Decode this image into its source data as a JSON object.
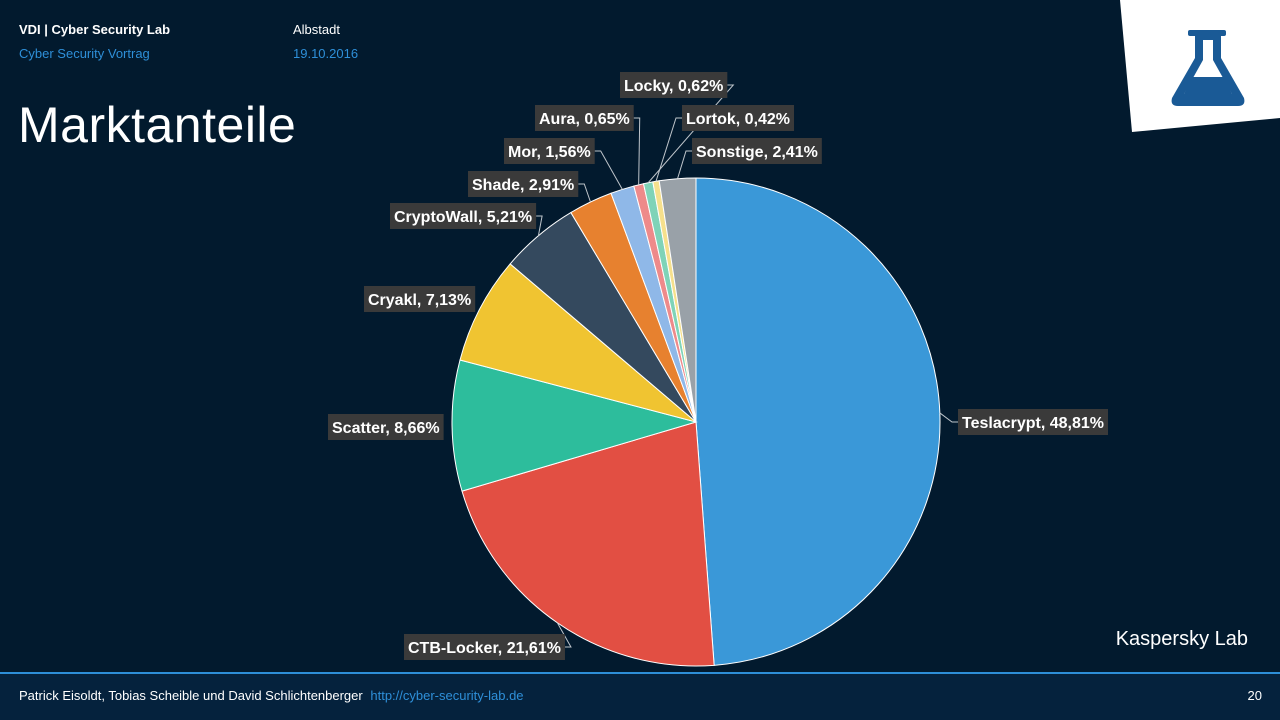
{
  "header": {
    "title": "VDI | Cyber Security Lab",
    "subtitle": "Cyber Security Vortrag",
    "location": "Albstadt",
    "date": "19.10.2016"
  },
  "slide": {
    "title": "Marktanteile",
    "source": "Kaspersky Lab",
    "page_number": "20"
  },
  "footer": {
    "authors": "Patrick Eisoldt, Tobias Scheible und David Schlichtenberger",
    "link": "http://cyber-security-lab.de"
  },
  "icons": {
    "logo": "flask-icon"
  },
  "colors": {
    "background": "#021a2e",
    "accent": "#2e8fd8",
    "label_bg": "#3a3a3a"
  },
  "chart_data": {
    "type": "pie",
    "title": "Marktanteile",
    "start": "12 o'clock, clockwise",
    "slices": [
      {
        "name": "Teslacrypt",
        "value": 48.81,
        "label": "Teslacrypt, 48,81%",
        "color": "#3a98d8"
      },
      {
        "name": "CTB-Locker",
        "value": 21.61,
        "label": "CTB-Locker, 21,61%",
        "color": "#e24f43"
      },
      {
        "name": "Scatter",
        "value": 8.66,
        "label": "Scatter, 8,66%",
        "color": "#2dbd9c"
      },
      {
        "name": "Cryakl",
        "value": 7.13,
        "label": "Cryakl, 7,13%",
        "color": "#f0c431"
      },
      {
        "name": "CryptoWall",
        "value": 5.21,
        "label": "CryptoWall, 5,21%",
        "color": "#34495e"
      },
      {
        "name": "Shade",
        "value": 2.91,
        "label": "Shade, 2,91%",
        "color": "#e7812f"
      },
      {
        "name": "Mor",
        "value": 1.56,
        "label": "Mor, 1,56%",
        "color": "#8fb8e8"
      },
      {
        "name": "Aura",
        "value": 0.65,
        "label": "Aura, 0,65%",
        "color": "#ee8a8a"
      },
      {
        "name": "Locky",
        "value": 0.62,
        "label": "Locky, 0,62%",
        "color": "#7fd3b8"
      },
      {
        "name": "Lortok",
        "value": 0.42,
        "label": "Lortok, 0,42%",
        "color": "#f6e08c"
      },
      {
        "name": "Sonstige",
        "value": 2.41,
        "label": "Sonstige, 2,41%",
        "color": "#99a1a8"
      }
    ]
  }
}
